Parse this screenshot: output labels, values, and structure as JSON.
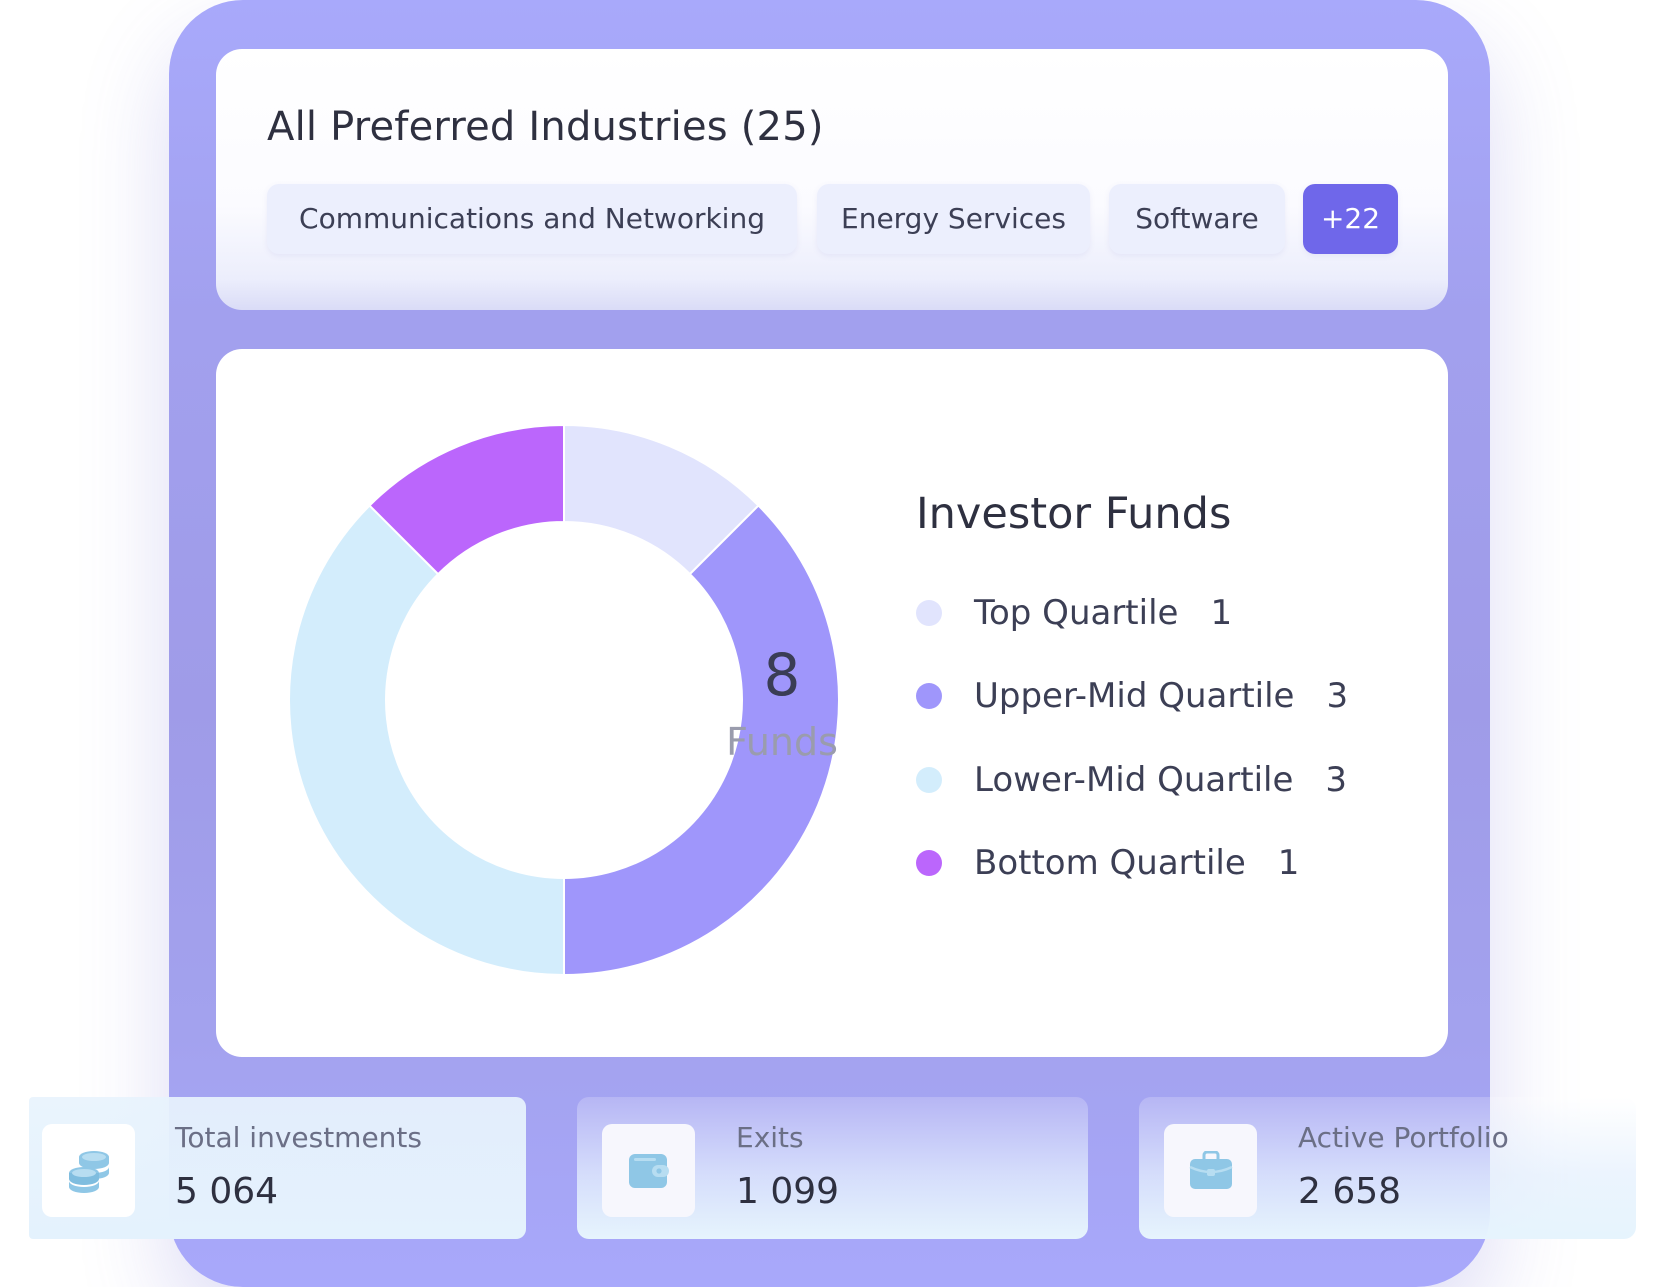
{
  "industries": {
    "title": "All Preferred Industries (25)",
    "chips": [
      {
        "label": "Communications and Networking"
      },
      {
        "label": "Energy Services"
      },
      {
        "label": "Software"
      }
    ],
    "more_label": "+22"
  },
  "chart_data": {
    "type": "pie",
    "title": "Investor Funds",
    "center_value": "8",
    "center_label": "Funds",
    "categories": [
      "Top Quartile",
      "Upper-Mid Quartile",
      "Lower-Mid Quartile",
      "Bottom Quartile"
    ],
    "values": [
      1,
      3,
      3,
      1
    ],
    "colors": [
      "#e1e4fd",
      "#9f96fb",
      "#d3edfc",
      "#bb66fc"
    ],
    "legend_position": "right"
  },
  "legend": [
    {
      "label": "Top Quartile",
      "value": "1",
      "color": "#e1e4fd"
    },
    {
      "label": "Upper-Mid Quartile",
      "value": "3",
      "color": "#9f96fb"
    },
    {
      "label": "Lower-Mid Quartile",
      "value": "3",
      "color": "#d3edfc"
    },
    {
      "label": "Bottom Quartile",
      "value": "1",
      "color": "#bb66fc"
    }
  ],
  "stats": [
    {
      "label": "Total investments",
      "value": "5 064",
      "icon": "coins-icon"
    },
    {
      "label": "Exits",
      "value": "1 099",
      "icon": "wallet-icon"
    },
    {
      "label": "Active Portfolio",
      "value": "2 658",
      "icon": "briefcase-icon"
    }
  ],
  "colors": {
    "frame": "#a8a9fb",
    "accent": "#6f67ea",
    "chip_bg": "#eceffd",
    "icon": "#8fc7e6"
  }
}
